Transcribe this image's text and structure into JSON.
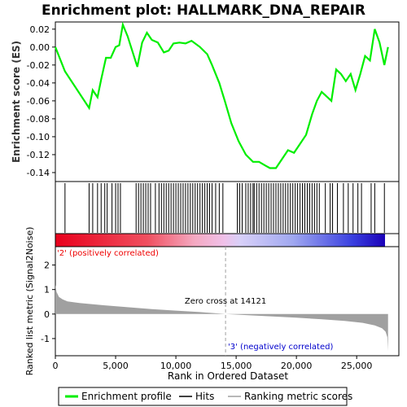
{
  "title": "Enrichment plot: HALLMARK_DNA_REPAIR",
  "colors": {
    "es_line": "#00ee00",
    "hits": "#000000",
    "metric": "#a0a0a0",
    "zero_cross": "#a0a0a0",
    "pos_label": "#ee0000",
    "neg_label": "#0000cc"
  },
  "zero_cross_label": "Zero cross at 14121",
  "pos_label": "'2' (positively correlated)",
  "neg_label": "'3' (negatively correlated)",
  "legend": {
    "enrichment_profile": "Enrichment profile",
    "hits": "Hits",
    "ranking": "Ranking metric scores"
  },
  "chart_data": [
    {
      "type": "line",
      "name": "enrichment_score",
      "title": "Enrichment plot: HALLMARK_DNA_REPAIR",
      "ylabel": "Enrichment score (ES)",
      "xlim": [
        0,
        28500
      ],
      "ylim": [
        -0.15,
        0.028
      ],
      "yticks": [
        0.02,
        0.0,
        -0.02,
        -0.04,
        -0.06,
        -0.08,
        -0.1,
        -0.12,
        -0.14
      ],
      "ytick_labels": [
        "0.02",
        "0.00",
        "-0.02",
        "-0.04",
        "-0.06",
        "-0.08",
        "-0.10",
        "-0.12",
        "-0.14"
      ],
      "grid": false,
      "x": [
        0,
        800,
        2800,
        3100,
        3500,
        3800,
        4200,
        4600,
        5000,
        5300,
        5600,
        6000,
        6800,
        7200,
        7600,
        8000,
        8500,
        9000,
        9400,
        9800,
        10300,
        10800,
        11300,
        12000,
        12600,
        13000,
        13600,
        14100,
        14600,
        15200,
        15800,
        16400,
        16900,
        17400,
        17800,
        18300,
        18800,
        19300,
        19800,
        20300,
        20800,
        21300,
        21700,
        22100,
        22500,
        22900,
        23300,
        23700,
        24100,
        24500,
        24900,
        25300,
        25700,
        26100,
        26500,
        26900,
        27300,
        27600
      ],
      "y": [
        0.0,
        -0.027,
        -0.068,
        -0.048,
        -0.056,
        -0.036,
        -0.012,
        -0.012,
        0.0,
        0.002,
        0.025,
        0.012,
        -0.022,
        0.005,
        0.016,
        0.008,
        0.005,
        -0.006,
        -0.004,
        0.004,
        0.005,
        0.004,
        0.007,
        0.0,
        -0.008,
        -0.02,
        -0.04,
        -0.062,
        -0.085,
        -0.105,
        -0.12,
        -0.128,
        -0.128,
        -0.132,
        -0.135,
        -0.135,
        -0.125,
        -0.115,
        -0.118,
        -0.108,
        -0.098,
        -0.075,
        -0.06,
        -0.05,
        -0.055,
        -0.06,
        -0.025,
        -0.03,
        -0.038,
        -0.03,
        -0.048,
        -0.03,
        -0.01,
        -0.015,
        0.02,
        0.005,
        -0.02,
        0.0
      ]
    },
    {
      "type": "scatter",
      "name": "hits",
      "x": [
        800,
        2800,
        3100,
        3500,
        3800,
        4100,
        4300,
        4700,
        5000,
        5200,
        5400,
        6700,
        6900,
        7100,
        7300,
        7500,
        7700,
        7900,
        8300,
        8600,
        8800,
        9000,
        9200,
        9400,
        9600,
        9800,
        10000,
        10200,
        10400,
        10600,
        10800,
        11000,
        11200,
        11400,
        11600,
        11800,
        12000,
        12200,
        12400,
        12600,
        12800,
        13000,
        13300,
        13600,
        13900,
        15100,
        15300,
        15500,
        15800,
        16000,
        16200,
        16400,
        16500,
        16700,
        16900,
        17100,
        17300,
        17500,
        17700,
        17900,
        18100,
        18300,
        18500,
        18700,
        18900,
        19100,
        19300,
        19500,
        19700,
        19900,
        20100,
        20300,
        20500,
        20700,
        20900,
        21100,
        21300,
        21500,
        21700,
        21900,
        22400,
        22800,
        23000,
        23400,
        23900,
        24300,
        24700,
        25100,
        25400,
        26200,
        26500,
        27300
      ]
    },
    {
      "type": "area",
      "name": "ranked_list_metric",
      "xlabel": "Rank in Ordered Dataset",
      "ylabel": "Ranked list metric (Signal2Noise)",
      "xlim": [
        0,
        28500
      ],
      "ylim": [
        -1.7,
        2.75
      ],
      "xticks": [
        0,
        5000,
        10000,
        15000,
        20000,
        25000
      ],
      "xtick_labels": [
        "0",
        "5,000",
        "10,000",
        "15,000",
        "20,000",
        "25,000"
      ],
      "yticks": [
        2,
        1,
        0,
        -1
      ],
      "ytick_labels": [
        "2",
        "1",
        "0",
        "-1"
      ],
      "zero_cross": 14121,
      "x": [
        0,
        100,
        300,
        600,
        1000,
        2000,
        4000,
        6000,
        8000,
        10000,
        12000,
        14121,
        16000,
        18000,
        20000,
        22000,
        24000,
        25500,
        26500,
        27100,
        27400,
        27550,
        27600
      ],
      "values": [
        1.2,
        0.9,
        0.7,
        0.6,
        0.52,
        0.45,
        0.36,
        0.28,
        0.2,
        0.14,
        0.08,
        0.0,
        -0.05,
        -0.1,
        -0.15,
        -0.21,
        -0.28,
        -0.36,
        -0.46,
        -0.58,
        -0.72,
        -0.95,
        -1.5
      ]
    }
  ]
}
